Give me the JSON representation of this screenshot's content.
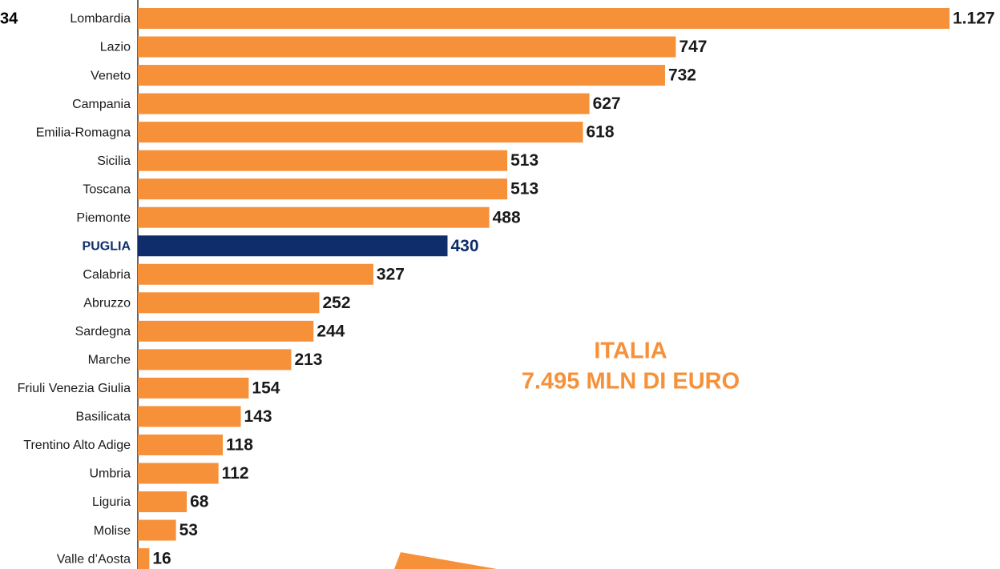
{
  "chart_data": {
    "type": "barh",
    "categories": [
      "Lombardia",
      "Lazio",
      "Veneto",
      "Campania",
      "Emilia-Romagna",
      "Sicilia",
      "Toscana",
      "Piemonte",
      "PUGLIA",
      "Calabria",
      "Abruzzo",
      "Sardegna",
      "Marche",
      "Friuli Venezia Giulia",
      "Basilicata",
      "Trentino Alto Adige",
      "Umbria",
      "Liguria",
      "Molise",
      "Valle d’Aosta"
    ],
    "values": [
      1127,
      747,
      732,
      627,
      618,
      513,
      513,
      488,
      430,
      327,
      252,
      244,
      213,
      154,
      143,
      118,
      112,
      68,
      53,
      16
    ],
    "value_labels": [
      "1.127",
      "747",
      "732",
      "627",
      "618",
      "513",
      "513",
      "488",
      "430",
      "327",
      "252",
      "244",
      "213",
      "154",
      "143",
      "118",
      "112",
      "68",
      "53",
      "16"
    ],
    "color": "#f6913a",
    "highlight": {
      "index": 8,
      "color": "#0e2d6a"
    },
    "xlim": [
      0,
      1127
    ],
    "annotations": [
      "ITALIA",
      "7.495 MLN DI EURO"
    ],
    "side_text": "34"
  }
}
